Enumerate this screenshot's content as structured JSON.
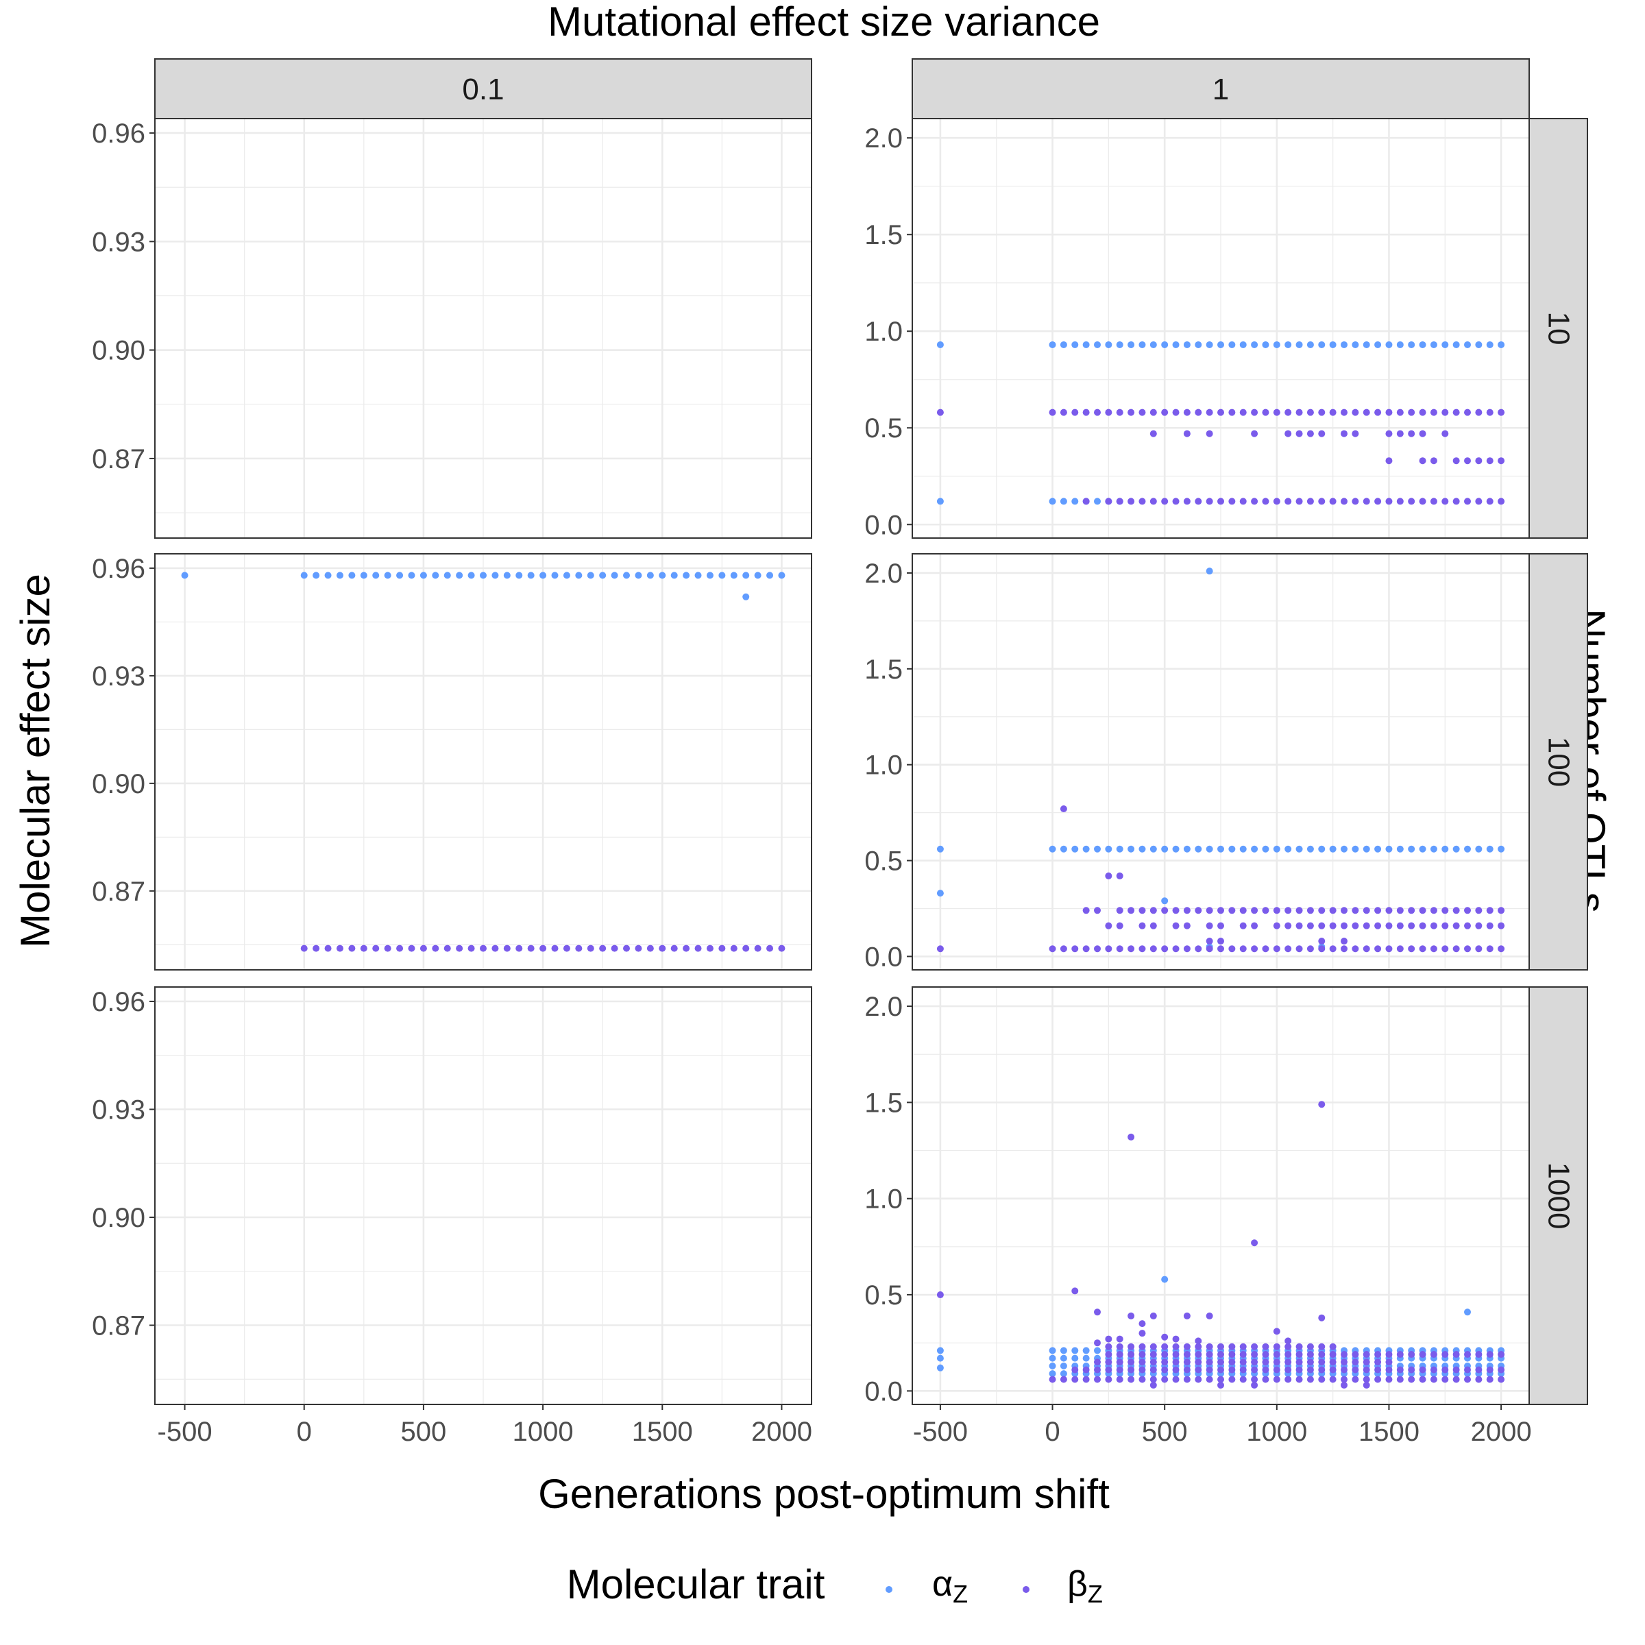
{
  "chart_data": {
    "type": "scatter",
    "facet_col_title": "Mutational effect size variance",
    "facet_row_title": "Number of QTLs",
    "xlabel": "Generations post-optimum shift",
    "ylabel": "Molecular effect size",
    "facet_cols": [
      "0.1",
      "1"
    ],
    "facet_rows": [
      "10",
      "100",
      "1000"
    ],
    "x_ticks": [
      -500,
      0,
      500,
      1000,
      1500,
      2000
    ],
    "xlim": [
      -625,
      2125
    ],
    "legend": {
      "title": "Molecular trait",
      "position": "bottom",
      "entries": [
        {
          "symbol": "α",
          "subscript": "Z",
          "color": "#619CFF"
        },
        {
          "symbol": "β",
          "subscript": "Z",
          "color": "#7A5BEB"
        }
      ]
    },
    "colors": {
      "alpha": "#619CFF",
      "beta": "#7A5BEB",
      "grid": "#EBEBEB",
      "strip_bg": "#D9D9D9",
      "panel_border": "#333333"
    },
    "grid": true,
    "panels": [
      {
        "row": "10",
        "col": "0.1",
        "ylim": [
          0.848,
          0.964
        ],
        "y_ticks": [
          0.87,
          0.9,
          0.93,
          0.96
        ],
        "y_tick_labels": [
          "0.87",
          "0.90",
          "0.93",
          "0.96"
        ],
        "series": []
      },
      {
        "row": "10",
        "col": "1",
        "ylim": [
          -0.07,
          2.1
        ],
        "y_ticks": [
          0,
          0.5,
          1,
          1.5,
          2
        ],
        "y_tick_labels": [
          "0.0",
          "0.5",
          "1.0",
          "1.5",
          "2.0"
        ],
        "series": [
          {
            "name": "alpha",
            "points": [
              [
                -500,
                0.93
              ],
              [
                -500,
                0.12
              ]
            ],
            "ranges": [
              {
                "from": 0,
                "to": 2000,
                "step": 50,
                "y": 0.93
              },
              {
                "from": 0,
                "to": 300,
                "step": 50,
                "y": 0.12
              }
            ]
          },
          {
            "name": "beta",
            "points": [
              [
                -500,
                0.58
              ],
              [
                450,
                0.47
              ],
              [
                600,
                0.47
              ],
              [
                700,
                0.47
              ],
              [
                900,
                0.47
              ],
              [
                1050,
                0.47
              ],
              [
                1100,
                0.47
              ],
              [
                1150,
                0.47
              ],
              [
                1200,
                0.47
              ],
              [
                1300,
                0.47
              ],
              [
                1350,
                0.47
              ],
              [
                1500,
                0.47
              ],
              [
                1550,
                0.47
              ],
              [
                1600,
                0.47
              ],
              [
                1650,
                0.47
              ],
              [
                1750,
                0.47
              ],
              [
                1500,
                0.33
              ],
              [
                1650,
                0.33
              ],
              [
                1700,
                0.33
              ],
              [
                1800,
                0.33
              ],
              [
                1850,
                0.33
              ],
              [
                1900,
                0.33
              ],
              [
                1950,
                0.33
              ],
              [
                2000,
                0.33
              ],
              [
                150,
                0.12
              ],
              [
                250,
                0.12
              ]
            ],
            "ranges": [
              {
                "from": 0,
                "to": 2000,
                "step": 50,
                "y": 0.58
              },
              {
                "from": 300,
                "to": 2000,
                "step": 50,
                "y": 0.12
              }
            ]
          }
        ]
      },
      {
        "row": "100",
        "col": "0.1",
        "ylim": [
          0.848,
          0.964
        ],
        "y_ticks": [
          0.87,
          0.9,
          0.93,
          0.96
        ],
        "y_tick_labels": [
          "0.87",
          "0.90",
          "0.93",
          "0.96"
        ],
        "series": [
          {
            "name": "alpha",
            "points": [
              [
                -500,
                0.958
              ],
              [
                1850,
                0.952
              ]
            ],
            "ranges": [
              {
                "from": 0,
                "to": 2000,
                "step": 50,
                "y": 0.958
              }
            ]
          },
          {
            "name": "beta",
            "points": [],
            "ranges": [
              {
                "from": 0,
                "to": 2000,
                "step": 50,
                "y": 0.854
              }
            ]
          }
        ]
      },
      {
        "row": "100",
        "col": "1",
        "ylim": [
          -0.07,
          2.1
        ],
        "y_ticks": [
          0,
          0.5,
          1,
          1.5,
          2
        ],
        "y_tick_labels": [
          "0.0",
          "0.5",
          "1.0",
          "1.5",
          "2.0"
        ],
        "series": [
          {
            "name": "alpha",
            "points": [
              [
                -500,
                0.56
              ],
              [
                -500,
                0.33
              ],
              [
                700,
                2.01
              ],
              [
                500,
                0.29
              ],
              [
                700,
                0.05
              ],
              [
                1200,
                0.05
              ]
            ],
            "ranges": [
              {
                "from": 0,
                "to": 2000,
                "step": 50,
                "y": 0.56
              }
            ]
          },
          {
            "name": "beta",
            "points": [
              [
                -500,
                0.04
              ],
              [
                50,
                0.77
              ],
              [
                250,
                0.42
              ],
              [
                300,
                0.42
              ],
              [
                150,
                0.24
              ],
              [
                200,
                0.24
              ],
              [
                250,
                0.16
              ],
              [
                300,
                0.16
              ],
              [
                400,
                0.16
              ],
              [
                450,
                0.16
              ],
              [
                550,
                0.16
              ],
              [
                600,
                0.16
              ],
              [
                700,
                0.16
              ],
              [
                750,
                0.16
              ],
              [
                850,
                0.16
              ],
              [
                900,
                0.16
              ],
              [
                700,
                0.08
              ],
              [
                750,
                0.08
              ],
              [
                1200,
                0.08
              ],
              [
                1300,
                0.08
              ]
            ],
            "ranges": [
              {
                "from": 0,
                "to": 2000,
                "step": 50,
                "y": 0.04
              },
              {
                "from": 300,
                "to": 2000,
                "step": 50,
                "y": 0.24
              },
              {
                "from": 1000,
                "to": 2000,
                "step": 50,
                "y": 0.16
              }
            ]
          }
        ]
      },
      {
        "row": "1000",
        "col": "0.1",
        "ylim": [
          0.848,
          0.964
        ],
        "y_ticks": [
          0.87,
          0.9,
          0.93,
          0.96
        ],
        "y_tick_labels": [
          "0.87",
          "0.90",
          "0.93",
          "0.96"
        ],
        "series": []
      },
      {
        "row": "1000",
        "col": "1",
        "ylim": [
          -0.07,
          2.1
        ],
        "y_ticks": [
          0,
          0.5,
          1,
          1.5,
          2
        ],
        "y_tick_labels": [
          "0.0",
          "0.5",
          "1.0",
          "1.5",
          "2.0"
        ],
        "series": [
          {
            "name": "alpha",
            "points": [
              [
                -500,
                0.21
              ],
              [
                -500,
                0.17
              ],
              [
                -500,
                0.12
              ],
              [
                500,
                0.58
              ],
              [
                1850,
                0.41
              ]
            ],
            "ranges": [
              {
                "from": 0,
                "to": 2000,
                "step": 50,
                "y": 0.21
              },
              {
                "from": 0,
                "to": 2000,
                "step": 50,
                "y": 0.17
              },
              {
                "from": 0,
                "to": 2000,
                "step": 50,
                "y": 0.13
              },
              {
                "from": 0,
                "to": 2000,
                "step": 50,
                "y": 0.09
              }
            ]
          },
          {
            "name": "beta",
            "points": [
              [
                -500,
                0.5
              ],
              [
                350,
                1.32
              ],
              [
                1200,
                1.49
              ],
              [
                900,
                0.77
              ],
              [
                100,
                0.52
              ],
              [
                200,
                0.41
              ],
              [
                350,
                0.39
              ],
              [
                400,
                0.35
              ],
              [
                450,
                0.39
              ],
              [
                500,
                0.28
              ],
              [
                600,
                0.39
              ],
              [
                700,
                0.39
              ],
              [
                1000,
                0.31
              ],
              [
                1200,
                0.38
              ],
              [
                300,
                0.27
              ],
              [
                400,
                0.3
              ],
              [
                550,
                0.27
              ],
              [
                650,
                0.26
              ],
              [
                1050,
                0.26
              ],
              [
                200,
                0.25
              ],
              [
                250,
                0.27
              ],
              [
                1400,
                0.03
              ],
              [
                1300,
                0.03
              ],
              [
                450,
                0.03
              ],
              [
                750,
                0.03
              ],
              [
                900,
                0.03
              ]
            ],
            "ranges": [
              {
                "from": 0,
                "to": 2000,
                "step": 50,
                "y": 0.06
              },
              {
                "from": 100,
                "to": 2000,
                "step": 50,
                "y": 0.11
              },
              {
                "from": 200,
                "to": 1500,
                "step": 50,
                "y": 0.15
              },
              {
                "from": 250,
                "to": 2000,
                "step": 50,
                "y": 0.19
              },
              {
                "from": 250,
                "to": 1250,
                "step": 50,
                "y": 0.23
              }
            ]
          }
        ]
      }
    ]
  }
}
